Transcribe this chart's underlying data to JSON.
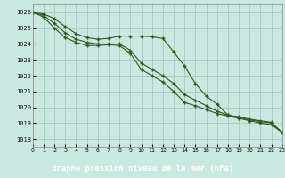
{
  "title": "Graphe pression niveau de la mer (hPa)",
  "background_color": "#c8e8e0",
  "grid_color": "#a0c4b8",
  "line_color": "#2d5a1e",
  "bottom_bar_color": "#2d5a1e",
  "bottom_text_color": "#ffffff",
  "xlim": [
    0,
    23
  ],
  "ylim": [
    1017.5,
    1026.5
  ],
  "yticks": [
    1018,
    1019,
    1020,
    1021,
    1022,
    1023,
    1024,
    1025,
    1026
  ],
  "xticks": [
    0,
    1,
    2,
    3,
    4,
    5,
    6,
    7,
    8,
    9,
    10,
    11,
    12,
    13,
    14,
    15,
    16,
    17,
    18,
    19,
    20,
    21,
    22,
    23
  ],
  "hours": [
    0,
    1,
    2,
    3,
    4,
    5,
    6,
    7,
    8,
    9,
    10,
    11,
    12,
    13,
    14,
    15,
    16,
    17,
    18,
    19,
    20,
    21,
    22,
    23
  ],
  "line1": [
    1026.0,
    1025.9,
    1025.6,
    1025.1,
    1024.65,
    1024.4,
    1024.3,
    1024.35,
    1024.5,
    1024.5,
    1024.5,
    1024.45,
    1024.35,
    1023.5,
    1022.6,
    1021.5,
    1020.7,
    1020.2,
    1019.5,
    1019.4,
    1019.25,
    1019.15,
    1019.05,
    1018.4
  ],
  "line2": [
    1026.0,
    1025.8,
    1025.3,
    1024.7,
    1024.3,
    1024.1,
    1024.0,
    1024.0,
    1024.0,
    1023.6,
    1022.8,
    1022.4,
    1022.0,
    1021.5,
    1020.8,
    1020.45,
    1020.1,
    1019.75,
    1019.5,
    1019.35,
    1019.2,
    1019.1,
    1019.0,
    1018.4
  ],
  "line3": [
    1026.0,
    1025.7,
    1025.0,
    1024.4,
    1024.1,
    1023.9,
    1023.9,
    1023.95,
    1023.9,
    1023.4,
    1022.4,
    1022.0,
    1021.6,
    1021.0,
    1020.3,
    1020.1,
    1019.85,
    1019.6,
    1019.45,
    1019.3,
    1019.15,
    1019.0,
    1018.9,
    1018.4
  ]
}
